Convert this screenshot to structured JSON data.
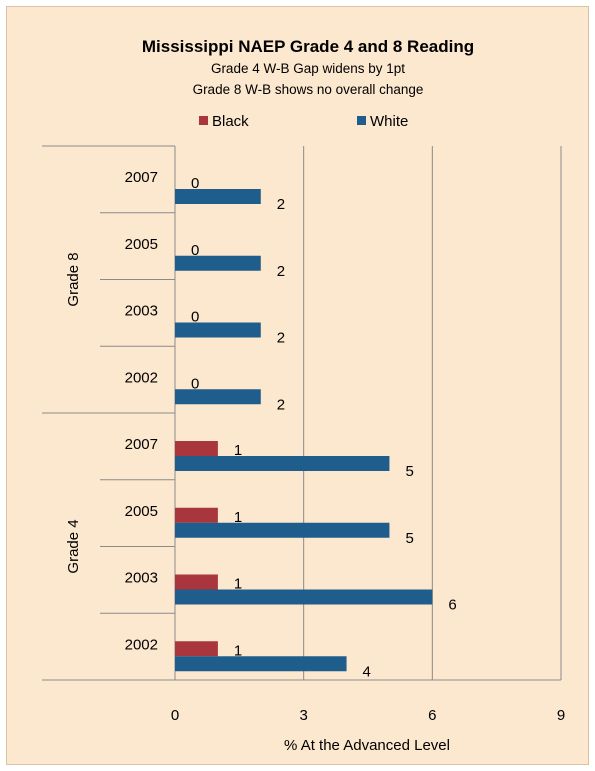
{
  "colors": {
    "background": "#fce8cf",
    "black": "#a9353d",
    "white": "#1f5d8c",
    "grid": "#8a8a8a"
  },
  "chart_data": {
    "type": "bar",
    "orientation": "horizontal",
    "title": "Mississippi NAEP Grade 4 and 8 Reading",
    "subtitles": [
      "Grade 4 W-B Gap widens by 1pt",
      "Grade 8 W-B shows no overall change"
    ],
    "xlabel": "% At the Advanced Level",
    "xlim": [
      0,
      9
    ],
    "xticks": [
      0,
      3,
      6,
      9
    ],
    "grid": "vertical",
    "legend_position": "top",
    "groups": [
      {
        "name": "Grade 8",
        "categories": [
          "2007",
          "2005",
          "2003",
          "2002"
        ]
      },
      {
        "name": "Grade 4",
        "categories": [
          "2007",
          "2005",
          "2003",
          "2002"
        ]
      }
    ],
    "series": [
      {
        "name": "Black",
        "color": "#a9353d",
        "values": [
          0,
          0,
          0,
          0,
          1,
          1,
          1,
          1
        ]
      },
      {
        "name": "White",
        "color": "#1f5d8c",
        "values": [
          2,
          2,
          2,
          2,
          5,
          5,
          6,
          4
        ]
      }
    ]
  }
}
